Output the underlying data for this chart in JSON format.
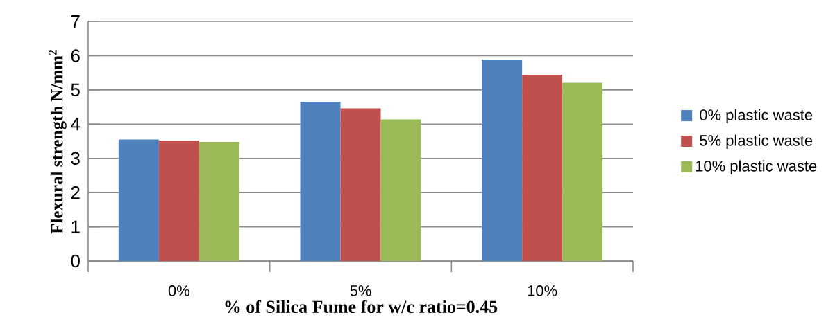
{
  "chart_data": {
    "type": "bar",
    "xlabel": "% of Silica Fume for w/c ratio=0.45",
    "ylabel": "Flexural strength N/mm$^{2}$",
    "categories": [
      "0%",
      "5%",
      "10%"
    ],
    "series": [
      {
        "name": "0% plastic waste",
        "color": "#4f81bd",
        "values": [
          3.55,
          4.65,
          5.89
        ]
      },
      {
        "name": "5% plastic waste",
        "color": "#c0504d",
        "values": [
          3.52,
          4.46,
          5.44
        ]
      },
      {
        "name": "10% plastic waste",
        "color": "#9bbb59",
        "values": [
          3.48,
          4.14,
          5.21
        ]
      }
    ],
    "ylim": [
      0,
      7
    ],
    "yticks": [
      0,
      1,
      2,
      3,
      4,
      5,
      6,
      7
    ],
    "grid": "y",
    "legend": "right"
  }
}
